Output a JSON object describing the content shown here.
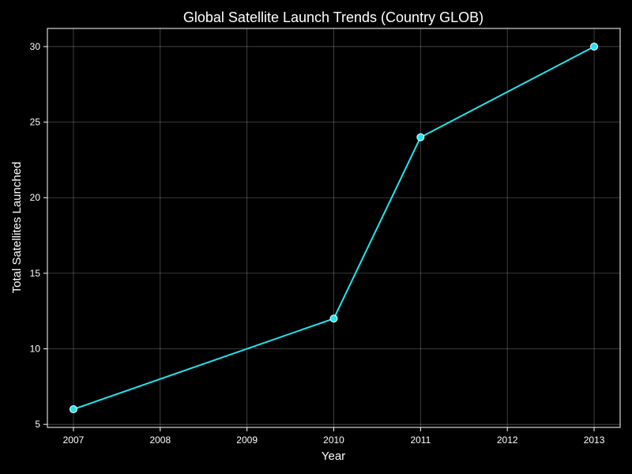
{
  "chart_data": {
    "type": "line",
    "title": "Global Satellite Launch Trends (Country GLOB)",
    "xlabel": "Year",
    "ylabel": "Total Satellites Launched",
    "x": [
      2007,
      2010,
      2011,
      2013
    ],
    "series": [
      {
        "values": [
          6,
          12,
          24,
          30
        ]
      }
    ],
    "xticks": [
      "2007",
      "2008",
      "2009",
      "2010",
      "2011",
      "2012",
      "2013"
    ],
    "yticks": [
      "5",
      "10",
      "15",
      "20",
      "25",
      "30"
    ],
    "xlim": [
      2006.7,
      2013.3
    ],
    "ylim": [
      4.8,
      31.2
    ],
    "grid": true,
    "legend": "none",
    "colors": {
      "background": "#000000",
      "line": "#22e5f0",
      "marker_fill": "#22e5f0",
      "marker_edge": "#ffffff",
      "text": "#ffffff"
    }
  }
}
